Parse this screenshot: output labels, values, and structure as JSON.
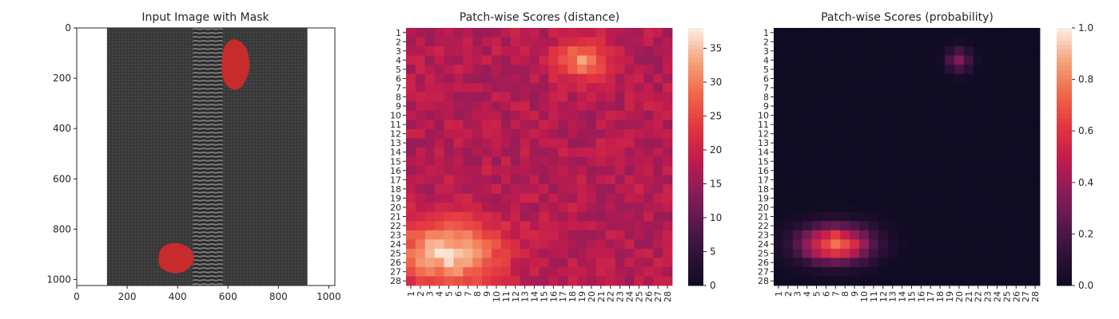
{
  "chart_data": [
    {
      "type": "image",
      "title": "Input Image with Mask",
      "x_ticks": [
        "0",
        "200",
        "400",
        "600",
        "800",
        "1000"
      ],
      "y_ticks": [
        "0",
        "200",
        "400",
        "600",
        "800",
        "1000"
      ],
      "xlim": [
        0,
        1024
      ],
      "ylim": [
        1024,
        0
      ],
      "image_extent_x": [
        120,
        915
      ],
      "zipper_x": [
        460,
        580
      ],
      "mask_regions": [
        {
          "name": "upper-mask",
          "cx": 630,
          "cy": 145,
          "approx_width": 110,
          "approx_height": 200
        },
        {
          "name": "lower-mask",
          "cx": 395,
          "cy": 915,
          "approx_width": 140,
          "approx_height": 120
        }
      ]
    },
    {
      "type": "heatmap",
      "title": "Patch-wise Scores (distance)",
      "x_ticks": [
        "1",
        "2",
        "3",
        "4",
        "5",
        "6",
        "7",
        "8",
        "9",
        "10",
        "11",
        "12",
        "13",
        "14",
        "15",
        "16",
        "17",
        "18",
        "19",
        "20",
        "21",
        "22",
        "23",
        "24",
        "25",
        "26",
        "27",
        "28"
      ],
      "y_ticks": [
        "1",
        "2",
        "3",
        "4",
        "5",
        "6",
        "7",
        "8",
        "9",
        "10",
        "11",
        "12",
        "13",
        "14",
        "15",
        "16",
        "17",
        "18",
        "19",
        "20",
        "21",
        "22",
        "23",
        "24",
        "25",
        "26",
        "27",
        "28"
      ],
      "colorbar": {
        "min": 0,
        "max": 38,
        "ticks": [
          "0",
          "5",
          "10",
          "15",
          "20",
          "25",
          "30",
          "35"
        ],
        "tick_values": [
          0,
          5,
          10,
          15,
          20,
          25,
          30,
          35
        ],
        "colormap": "rocket"
      },
      "grid_size": 28,
      "base_value": 18,
      "hotspots": [
        {
          "row": 4,
          "col": 19,
          "peak": 32,
          "spread_rows": 1.5,
          "spread_cols": 2.0
        },
        {
          "row": 25,
          "col": 5,
          "peak": 37,
          "spread_rows": 2.5,
          "spread_cols": 4.0
        }
      ]
    },
    {
      "type": "heatmap",
      "title": "Patch-wise Scores (probability)",
      "x_ticks": [
        "1",
        "2",
        "3",
        "4",
        "5",
        "6",
        "7",
        "8",
        "9",
        "10",
        "11",
        "12",
        "13",
        "14",
        "15",
        "16",
        "17",
        "18",
        "19",
        "20",
        "21",
        "22",
        "23",
        "24",
        "25",
        "26",
        "27",
        "28"
      ],
      "y_ticks": [
        "1",
        "2",
        "3",
        "4",
        "5",
        "6",
        "7",
        "8",
        "9",
        "10",
        "11",
        "12",
        "13",
        "14",
        "15",
        "16",
        "17",
        "18",
        "19",
        "20",
        "21",
        "22",
        "23",
        "24",
        "25",
        "26",
        "27",
        "28"
      ],
      "colorbar": {
        "min": 0.0,
        "max": 1.0,
        "ticks": [
          "0.0",
          "0.2",
          "0.4",
          "0.6",
          "0.8",
          "1.0"
        ],
        "tick_values": [
          0.0,
          0.2,
          0.4,
          0.6,
          0.8,
          1.0
        ],
        "colormap": "rocket"
      },
      "grid_size": 28,
      "base_value": 0.01,
      "hotspots": [
        {
          "row": 4,
          "col": 20,
          "peak": 0.35,
          "spread_rows": 0.9,
          "spread_cols": 0.9
        },
        {
          "row": 24,
          "col": 7,
          "peak": 0.78,
          "spread_rows": 1.4,
          "spread_cols": 2.6
        }
      ]
    }
  ]
}
